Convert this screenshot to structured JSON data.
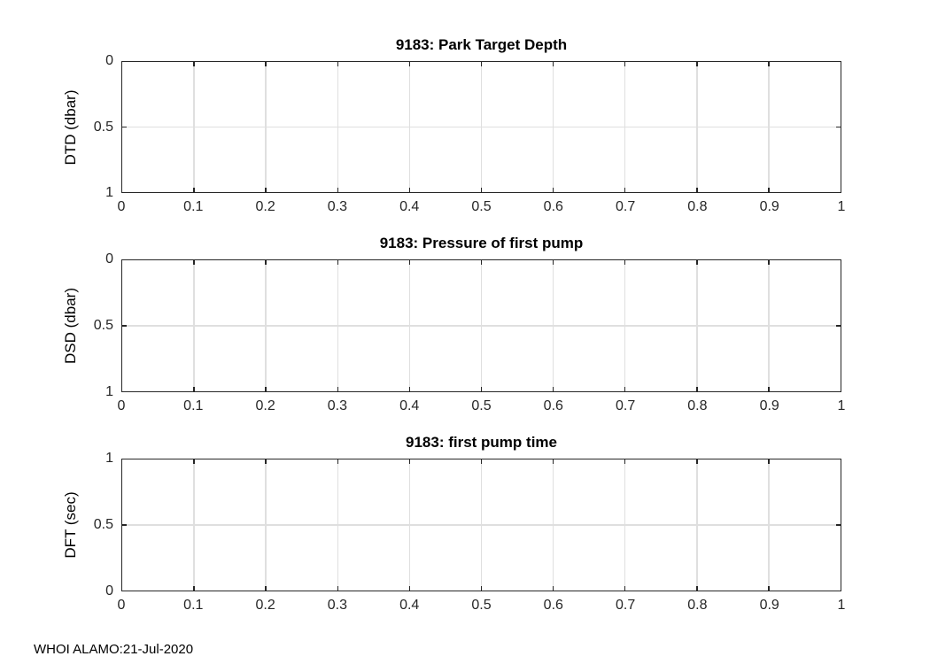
{
  "figure": {
    "background_color": "#ffffff",
    "axis_color": "#262626",
    "grid_color": "#dfdfdf",
    "text_color": "#000000"
  },
  "footer": {
    "text": "WHOI ALAMO:21-Jul-2020"
  },
  "chart_data": [
    {
      "type": "line",
      "title": "9183: Park Target Depth",
      "xlabel": "",
      "ylabel": "DTD (dbar)",
      "xlim": [
        0,
        1
      ],
      "ylim": [
        0,
        1
      ],
      "y_axis_direction": "reversed",
      "xticks": [
        "0",
        "0.1",
        "0.2",
        "0.3",
        "0.4",
        "0.5",
        "0.6",
        "0.7",
        "0.8",
        "0.9",
        "1"
      ],
      "yticks_top_to_bottom": [
        "0",
        "0.5",
        "1"
      ],
      "grid": true,
      "legend": null,
      "series": []
    },
    {
      "type": "line",
      "title": "9183: Pressure of first pump",
      "xlabel": "",
      "ylabel": "DSD (dbar)",
      "xlim": [
        0,
        1
      ],
      "ylim": [
        0,
        1
      ],
      "y_axis_direction": "reversed",
      "xticks": [
        "0",
        "0.1",
        "0.2",
        "0.3",
        "0.4",
        "0.5",
        "0.6",
        "0.7",
        "0.8",
        "0.9",
        "1"
      ],
      "yticks_top_to_bottom": [
        "0",
        "0.5",
        "1"
      ],
      "grid": true,
      "legend": null,
      "series": []
    },
    {
      "type": "line",
      "title": "9183: first pump time",
      "xlabel": "",
      "ylabel": "DFT (sec)",
      "xlim": [
        0,
        1
      ],
      "ylim": [
        0,
        1
      ],
      "y_axis_direction": "normal",
      "xticks": [
        "0",
        "0.1",
        "0.2",
        "0.3",
        "0.4",
        "0.5",
        "0.6",
        "0.7",
        "0.8",
        "0.9",
        "1"
      ],
      "yticks_top_to_bottom": [
        "1",
        "0.5",
        "0"
      ],
      "grid": true,
      "legend": null,
      "series": []
    }
  ]
}
